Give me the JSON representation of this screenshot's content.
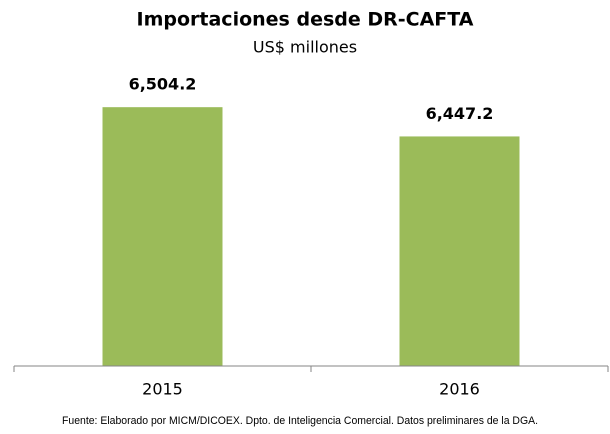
{
  "chart_data": {
    "type": "bar",
    "title": "Importaciones desde DR-CAFTA",
    "subtitle": "US$ millones",
    "categories": [
      "2015",
      "2016"
    ],
    "values": [
      6504.2,
      6447.2
    ],
    "value_labels": [
      "6,504.2",
      "6,447.2"
    ],
    "color": "#9bbb59",
    "ylim": [
      6000,
      6600
    ],
    "note": "Fuente: Elaborado por MICM/DICOEX. Dpto. de Inteligencia Comercial. Datos preliminares de la DGA."
  }
}
